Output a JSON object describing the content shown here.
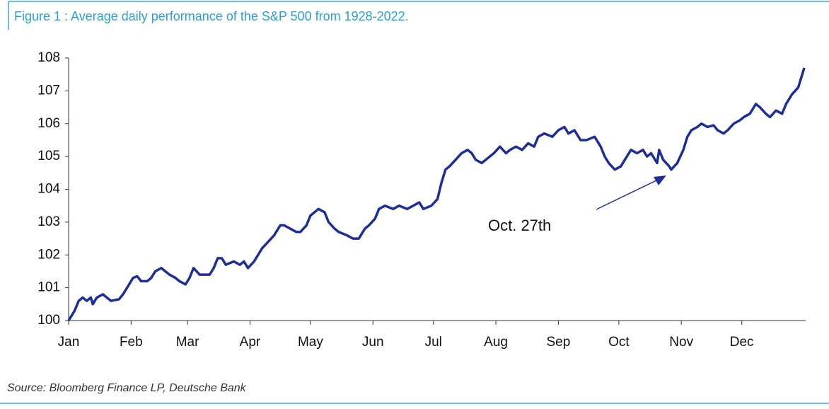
{
  "chart_data": {
    "type": "line",
    "title": "Figure 1 : Average daily performance of the S&P 500 from 1928-2022.",
    "source": "Source: Bloomberg Finance LP, Deutsche Bank",
    "annotation": "Oct. 27th",
    "xlim": [
      0,
      365
    ],
    "xticks": [
      {
        "value": 0,
        "label": "Jan"
      },
      {
        "value": 31,
        "label": "Feb"
      },
      {
        "value": 59,
        "label": "Mar"
      },
      {
        "value": 90,
        "label": "Apr"
      },
      {
        "value": 120,
        "label": "May"
      },
      {
        "value": 151,
        "label": "Jun"
      },
      {
        "value": 181,
        "label": "Jul"
      },
      {
        "value": 212,
        "label": "Aug"
      },
      {
        "value": 243,
        "label": "Sep"
      },
      {
        "value": 273,
        "label": "Oct"
      },
      {
        "value": 304,
        "label": "Nov"
      },
      {
        "value": 334,
        "label": "Dec"
      }
    ],
    "ylim": [
      100,
      108
    ],
    "yticks": [
      100,
      101,
      102,
      103,
      104,
      105,
      106,
      107,
      108
    ],
    "x": [
      0,
      3,
      5,
      7,
      9,
      11,
      12,
      14,
      17,
      19,
      21,
      25,
      27,
      29,
      32,
      34,
      36,
      39,
      41,
      43,
      46,
      48,
      50,
      53,
      55,
      58,
      60,
      62,
      65,
      68,
      70,
      72,
      74,
      76,
      78,
      82,
      85,
      87,
      89,
      92,
      94,
      96,
      99,
      102,
      105,
      107,
      110,
      113,
      115,
      118,
      120,
      124,
      127,
      129,
      132,
      134,
      138,
      141,
      144,
      147,
      149,
      152,
      154,
      157,
      161,
      164,
      168,
      171,
      174,
      176,
      180,
      183,
      185,
      187,
      189,
      192,
      195,
      198,
      200,
      202,
      205,
      208,
      211,
      214,
      217,
      219,
      222,
      225,
      228,
      231,
      233,
      236,
      240,
      243,
      246,
      248,
      251,
      254,
      257,
      261,
      264,
      266,
      268,
      271,
      274,
      276,
      279,
      282,
      285,
      287,
      289,
      292,
      293,
      295,
      298,
      299,
      302,
      305,
      307,
      309,
      312,
      314,
      317,
      320,
      322,
      325,
      327,
      330,
      333,
      335,
      338,
      341,
      343,
      346,
      348,
      351,
      354,
      356,
      359,
      362,
      364,
      365
    ],
    "series": [
      {
        "color": "#1f2d99",
        "values": [
          100.0,
          100.3,
          100.6,
          100.7,
          100.6,
          100.7,
          100.5,
          100.7,
          100.8,
          100.7,
          100.6,
          100.65,
          100.8,
          101.0,
          101.3,
          101.35,
          101.2,
          101.2,
          101.3,
          101.5,
          101.6,
          101.5,
          101.4,
          101.3,
          101.2,
          101.1,
          101.3,
          101.6,
          101.4,
          101.4,
          101.4,
          101.6,
          101.9,
          101.9,
          101.7,
          101.8,
          101.7,
          101.8,
          101.6,
          101.8,
          102.0,
          102.2,
          102.4,
          102.6,
          102.9,
          102.9,
          102.8,
          102.7,
          102.7,
          102.9,
          103.2,
          103.4,
          103.3,
          103.0,
          102.8,
          102.7,
          102.6,
          102.5,
          102.5,
          102.8,
          102.9,
          103.1,
          103.4,
          103.5,
          103.4,
          103.5,
          103.4,
          103.5,
          103.6,
          103.4,
          103.5,
          103.7,
          104.2,
          104.6,
          104.7,
          104.9,
          105.1,
          105.2,
          105.1,
          104.9,
          104.8,
          104.95,
          105.1,
          105.3,
          105.1,
          105.2,
          105.3,
          105.2,
          105.4,
          105.3,
          105.6,
          105.7,
          105.6,
          105.8,
          105.9,
          105.7,
          105.8,
          105.5,
          105.5,
          105.6,
          105.3,
          105.0,
          104.8,
          104.6,
          104.7,
          104.9,
          105.2,
          105.1,
          105.2,
          105.0,
          105.1,
          104.8,
          105.2,
          104.9,
          104.7,
          104.6,
          104.8,
          105.2,
          105.6,
          105.8,
          105.9,
          106.0,
          105.9,
          105.95,
          105.8,
          105.7,
          105.8,
          106.0,
          106.1,
          106.2,
          106.3,
          106.6,
          106.5,
          106.3,
          106.2,
          106.4,
          106.3,
          106.6,
          106.9,
          107.1,
          107.5,
          107.7
        ]
      }
    ]
  }
}
